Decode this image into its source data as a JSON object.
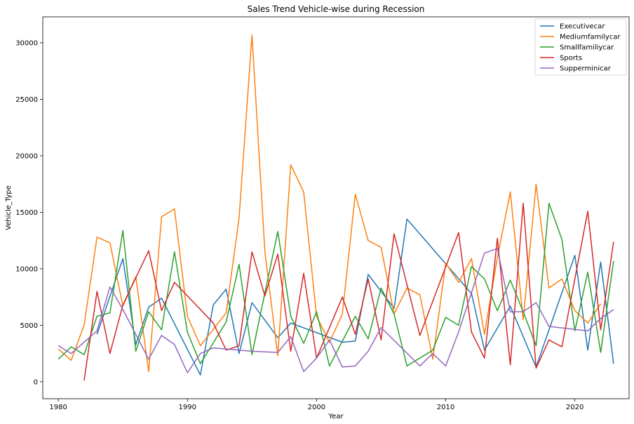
{
  "chart_data": {
    "type": "line",
    "title": "Sales Trend Vehicle-wise during Recession",
    "xlabel": "Year",
    "ylabel": "Vehicle_Type",
    "xlim": [
      1978.8,
      2024.2
    ],
    "ylim": [
      -1500,
      32300
    ],
    "xticks": [
      1980,
      1990,
      2000,
      2010,
      2020
    ],
    "yticks": [
      0,
      5000,
      10000,
      15000,
      20000,
      25000,
      30000
    ],
    "grid": false,
    "legend_position": "top-right",
    "series": [
      {
        "name": "Executivecar",
        "color": "#1f77b4",
        "points": [
          [
            1983,
            4200
          ],
          [
            1985,
            10900
          ],
          [
            1986,
            3300
          ],
          [
            1987,
            6600
          ],
          [
            1988,
            7400
          ],
          [
            1991,
            600
          ],
          [
            1992,
            6800
          ],
          [
            1993,
            8200
          ],
          [
            1994,
            2500
          ],
          [
            1995,
            7000
          ],
          [
            1997,
            3900
          ],
          [
            1998,
            5200
          ],
          [
            2002,
            3500
          ],
          [
            2003,
            3600
          ],
          [
            2004,
            9500
          ],
          [
            2006,
            6500
          ],
          [
            2007,
            14400
          ],
          [
            2012,
            7800
          ],
          [
            2013,
            2800
          ],
          [
            2015,
            6700
          ],
          [
            2017,
            1300
          ],
          [
            2020,
            11200
          ],
          [
            2021,
            2800
          ],
          [
            2022,
            10600
          ],
          [
            2023,
            1600
          ]
        ]
      },
      {
        "name": "Mediumfamilycar",
        "color": "#ff7f0e",
        "points": [
          [
            1980,
            2900
          ],
          [
            1981,
            1900
          ],
          [
            1982,
            5000
          ],
          [
            1983,
            12800
          ],
          [
            1984,
            12300
          ],
          [
            1985,
            6700
          ],
          [
            1986,
            9300
          ],
          [
            1987,
            900
          ],
          [
            1988,
            14600
          ],
          [
            1989,
            15300
          ],
          [
            1990,
            5800
          ],
          [
            1991,
            3200
          ],
          [
            1993,
            6100
          ],
          [
            1994,
            14500
          ],
          [
            1995,
            30700
          ],
          [
            1996,
            11500
          ],
          [
            1997,
            2300
          ],
          [
            1998,
            19200
          ],
          [
            1999,
            16800
          ],
          [
            2000,
            5800
          ],
          [
            2001,
            3500
          ],
          [
            2002,
            6000
          ],
          [
            2003,
            16600
          ],
          [
            2004,
            12500
          ],
          [
            2005,
            11900
          ],
          [
            2006,
            6000
          ],
          [
            2007,
            8300
          ],
          [
            2008,
            7700
          ],
          [
            2009,
            2000
          ],
          [
            2010,
            10500
          ],
          [
            2011,
            8800
          ],
          [
            2012,
            10900
          ],
          [
            2013,
            4200
          ],
          [
            2014,
            11000
          ],
          [
            2015,
            16800
          ],
          [
            2016,
            5500
          ],
          [
            2017,
            17500
          ],
          [
            2018,
            8300
          ],
          [
            2019,
            9100
          ],
          [
            2020,
            6300
          ],
          [
            2021,
            5200
          ],
          [
            2022,
            6900
          ]
        ]
      },
      {
        "name": "Smallfamiliycar",
        "color": "#2ca02c",
        "points": [
          [
            1980,
            2000
          ],
          [
            1981,
            3100
          ],
          [
            1982,
            2400
          ],
          [
            1983,
            5800
          ],
          [
            1984,
            6100
          ],
          [
            1985,
            13400
          ],
          [
            1986,
            2700
          ],
          [
            1987,
            6200
          ],
          [
            1988,
            4600
          ],
          [
            1989,
            11500
          ],
          [
            1990,
            4400
          ],
          [
            1991,
            1600
          ],
          [
            1993,
            5300
          ],
          [
            1994,
            10400
          ],
          [
            1995,
            2400
          ],
          [
            1997,
            13300
          ],
          [
            1998,
            5800
          ],
          [
            1999,
            3400
          ],
          [
            2000,
            6200
          ],
          [
            2001,
            1400
          ],
          [
            2003,
            5800
          ],
          [
            2004,
            3800
          ],
          [
            2005,
            8300
          ],
          [
            2006,
            6000
          ],
          [
            2007,
            1400
          ],
          [
            2009,
            2800
          ],
          [
            2010,
            5700
          ],
          [
            2011,
            5000
          ],
          [
            2012,
            10200
          ],
          [
            2013,
            9100
          ],
          [
            2014,
            6300
          ],
          [
            2015,
            9000
          ],
          [
            2016,
            6200
          ],
          [
            2017,
            3200
          ],
          [
            2018,
            15800
          ],
          [
            2019,
            12600
          ],
          [
            2020,
            4500
          ],
          [
            2021,
            9700
          ],
          [
            2022,
            2600
          ],
          [
            2023,
            10700
          ]
        ]
      },
      {
        "name": "Sports",
        "color": "#d62728",
        "points": [
          [
            1982,
            100
          ],
          [
            1983,
            8000
          ],
          [
            1984,
            2500
          ],
          [
            1985,
            6800
          ],
          [
            1987,
            11600
          ],
          [
            1988,
            6300
          ],
          [
            1989,
            8800
          ],
          [
            1992,
            5200
          ],
          [
            1993,
            2800
          ],
          [
            1994,
            3200
          ],
          [
            1995,
            11500
          ],
          [
            1996,
            7600
          ],
          [
            1997,
            11300
          ],
          [
            1998,
            2700
          ],
          [
            1999,
            9600
          ],
          [
            2000,
            2100
          ],
          [
            2002,
            7500
          ],
          [
            2003,
            4200
          ],
          [
            2004,
            9100
          ],
          [
            2005,
            3700
          ],
          [
            2006,
            13100
          ],
          [
            2008,
            4100
          ],
          [
            2011,
            13200
          ],
          [
            2012,
            4400
          ],
          [
            2013,
            2100
          ],
          [
            2014,
            12700
          ],
          [
            2015,
            1500
          ],
          [
            2016,
            15800
          ],
          [
            2017,
            1200
          ],
          [
            2018,
            3700
          ],
          [
            2019,
            3100
          ],
          [
            2021,
            15100
          ],
          [
            2022,
            4600
          ],
          [
            2023,
            12400
          ]
        ]
      },
      {
        "name": "Supperminicar",
        "color": "#9467bd",
        "points": [
          [
            1980,
            3200
          ],
          [
            1981,
            2500
          ],
          [
            1983,
            4500
          ],
          [
            1984,
            8400
          ],
          [
            1985,
            6400
          ],
          [
            1987,
            2000
          ],
          [
            1988,
            4100
          ],
          [
            1989,
            3300
          ],
          [
            1990,
            800
          ],
          [
            1991,
            2500
          ],
          [
            1992,
            3000
          ],
          [
            1995,
            2700
          ],
          [
            1997,
            2600
          ],
          [
            1998,
            4000
          ],
          [
            1999,
            900
          ],
          [
            2000,
            2100
          ],
          [
            2001,
            3700
          ],
          [
            2002,
            1300
          ],
          [
            2003,
            1400
          ],
          [
            2004,
            2700
          ],
          [
            2005,
            4800
          ],
          [
            2008,
            1400
          ],
          [
            2009,
            2500
          ],
          [
            2010,
            1400
          ],
          [
            2011,
            4400
          ],
          [
            2013,
            11400
          ],
          [
            2014,
            11800
          ],
          [
            2015,
            6200
          ],
          [
            2016,
            6200
          ],
          [
            2017,
            7000
          ],
          [
            2018,
            4900
          ],
          [
            2021,
            4500
          ],
          [
            2022,
            5600
          ],
          [
            2023,
            6400
          ]
        ]
      }
    ]
  }
}
